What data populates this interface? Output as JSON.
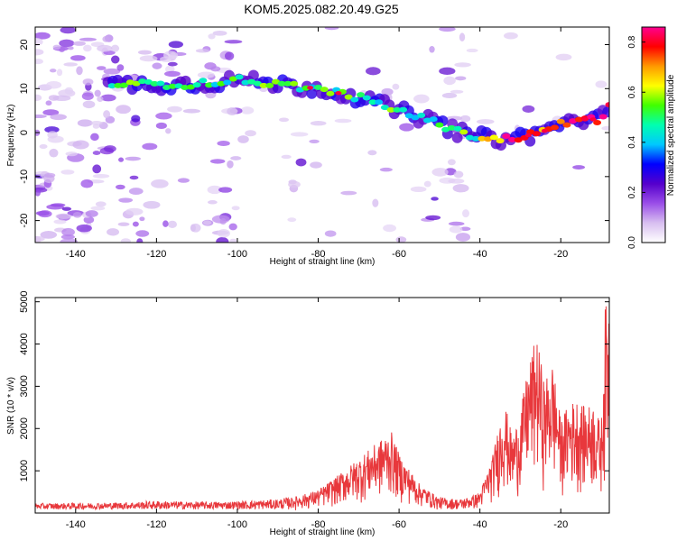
{
  "title": "KOM5.2025.082.20.49.G25",
  "chart_data": [
    {
      "type": "heatmap",
      "xlabel": "Height of straight line (km)",
      "ylabel": "Frequency (Hz)",
      "xlim": [
        -150,
        -8
      ],
      "ylim": [
        -25,
        24
      ],
      "xticks": [
        -140,
        -120,
        -100,
        -80,
        -60,
        -40,
        -20
      ],
      "yticks": [
        20,
        10,
        0,
        -10,
        -20
      ],
      "colorbar": {
        "label": "Normalized spectral amplitude",
        "range": [
          0.0,
          0.86
        ],
        "ticks": [
          "0.0",
          "0.2",
          "0.4",
          "0.6",
          "0.8"
        ]
      },
      "ridge": {
        "description_points_x": [
          -130,
          -120,
          -110,
          -100,
          -90,
          -80,
          -70,
          -60,
          -50,
          -45,
          -40,
          -35,
          -30,
          -25,
          -20,
          -15,
          -10,
          -8
        ],
        "description_points_y": [
          11,
          11,
          11,
          12,
          11,
          10,
          8,
          5,
          2,
          0,
          -1,
          -1.5,
          -1,
          0,
          2,
          3,
          3,
          7
        ]
      },
      "colors": {
        "colormap": [
          "#ffffff",
          "#d8bff0",
          "#9a4ee8",
          "#5500cc",
          "#0000ff",
          "#00c8ff",
          "#00ffb0",
          "#40ff00",
          "#ffff00",
          "#ff9900",
          "#ff0000",
          "#ff0090"
        ]
      }
    },
    {
      "type": "line",
      "xlabel": "Height of straight line (km)",
      "ylabel": "SNR (10 * v/v)",
      "xlim": [
        -150,
        -8
      ],
      "ylim": [
        0,
        5100
      ],
      "xticks": [
        -140,
        -120,
        -100,
        -80,
        -60,
        -40,
        -20
      ],
      "yticks": [
        1000,
        2000,
        3000,
        4000,
        5000
      ],
      "series_color": "#e8383c",
      "envelope": {
        "x": [
          -150,
          -130,
          -120,
          -110,
          -100,
          -90,
          -85,
          -80,
          -75,
          -70,
          -65,
          -62,
          -60,
          -55,
          -50,
          -45,
          -42,
          -40,
          -37,
          -34,
          -32,
          -30,
          -28,
          -26,
          -24,
          -22,
          -20,
          -18,
          -16,
          -14,
          -12,
          -10,
          -9,
          -8
        ],
        "y": [
          200,
          220,
          260,
          240,
          250,
          300,
          400,
          550,
          900,
          1300,
          1700,
          1950,
          1400,
          700,
          350,
          300,
          400,
          500,
          1300,
          2700,
          1800,
          2400,
          3500,
          4200,
          3100,
          3600,
          2200,
          2600,
          2700,
          2500,
          2600,
          2100,
          4900,
          5100
        ]
      }
    }
  ]
}
